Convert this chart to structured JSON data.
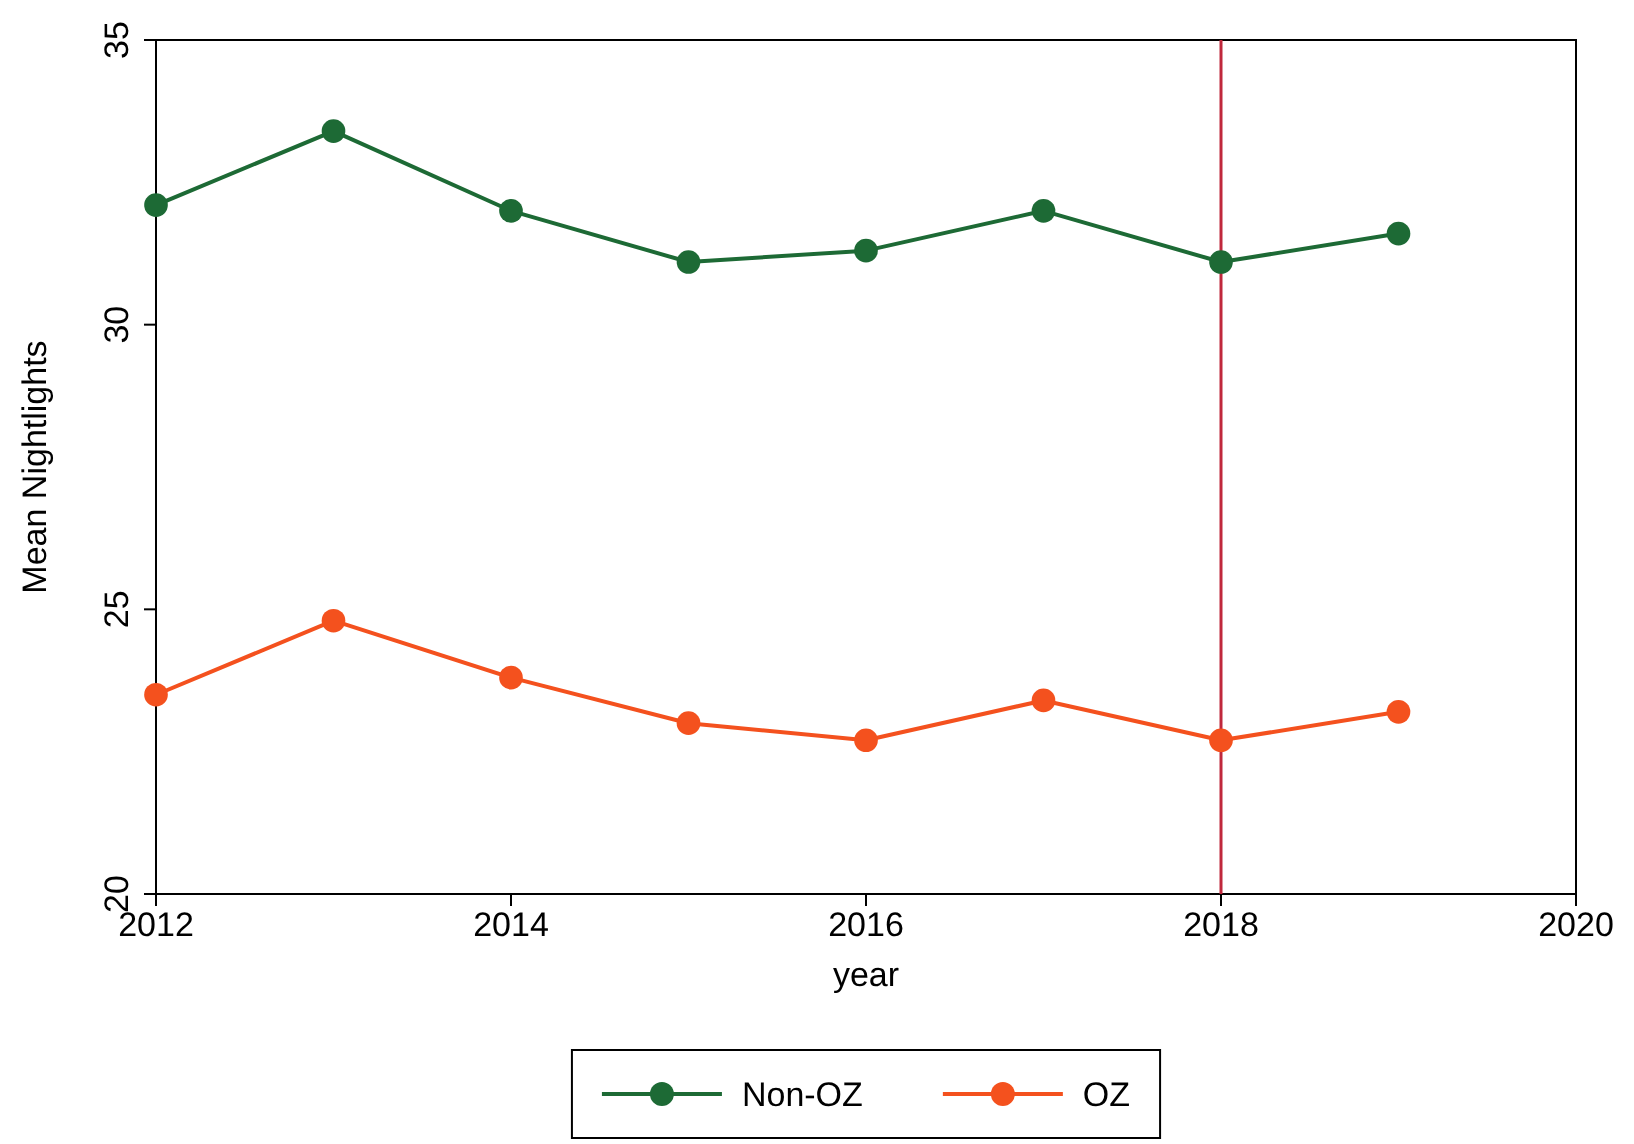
{
  "chart_data": {
    "type": "line",
    "xlabel": "year",
    "ylabel": "Mean Nightlights",
    "x": [
      2012,
      2013,
      2014,
      2015,
      2016,
      2017,
      2018,
      2019
    ],
    "series": [
      {
        "name": "Non-OZ",
        "color": "#1d6a35",
        "values": [
          32.1,
          33.4,
          32.0,
          31.1,
          31.3,
          32.0,
          31.1,
          31.6
        ]
      },
      {
        "name": "OZ",
        "color": "#f4511e",
        "values": [
          23.5,
          24.8,
          23.8,
          23.0,
          22.7,
          23.4,
          22.7,
          23.2
        ]
      }
    ],
    "xlim": [
      2012,
      2020
    ],
    "xticks": [
      2012,
      2014,
      2016,
      2018,
      2020
    ],
    "ylim": [
      20,
      35
    ],
    "yticks": [
      20,
      25,
      30,
      35
    ],
    "ref_lines": [
      {
        "axis": "x",
        "value": 2018,
        "color": "#c0283c"
      }
    ],
    "marker": "circle",
    "line_style": "solid",
    "grid": false,
    "legend": "bottom"
  }
}
